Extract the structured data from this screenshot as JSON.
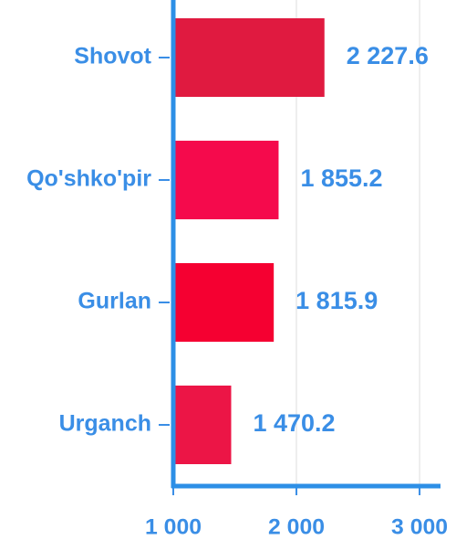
{
  "chart_data": {
    "type": "hbar",
    "categories": [
      "Shovot",
      "Qo'shko'pir",
      "Gurlan",
      "Urganch"
    ],
    "values": [
      2227.6,
      1855.2,
      1815.9,
      1470.2
    ],
    "value_labels": [
      "2 227.6",
      "1 855.2",
      "1 815.9",
      "1 470.2"
    ],
    "colors": [
      "#e01a40",
      "#f50a4c",
      "#f50031",
      "#ec1546"
    ],
    "xlim": [
      1000,
      3170
    ],
    "xticks": [
      {
        "value": 1000,
        "label": "1 000"
      },
      {
        "value": 2000,
        "label": "2 000"
      },
      {
        "value": 3000,
        "label": "3 000"
      }
    ],
    "grid": true
  }
}
